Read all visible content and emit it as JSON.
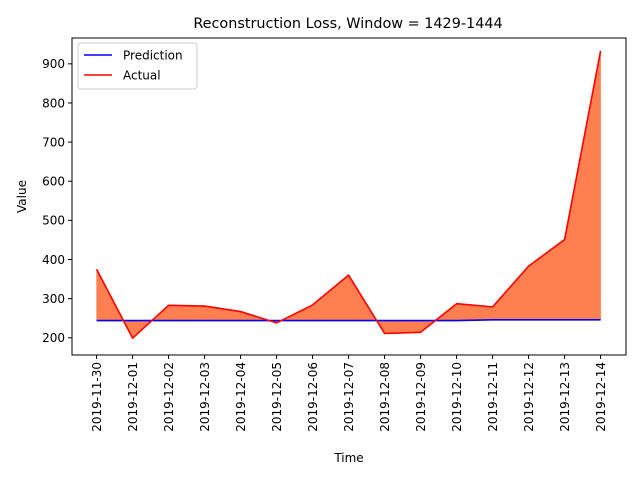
{
  "chart_data": {
    "type": "line",
    "title": "Reconstruction Loss, Window = 1429-1444",
    "xlabel": "Time",
    "ylabel": "Value",
    "categories": [
      "2019-11-30",
      "2019-12-01",
      "2019-12-02",
      "2019-12-03",
      "2019-12-04",
      "2019-12-05",
      "2019-12-06",
      "2019-12-07",
      "2019-12-08",
      "2019-12-09",
      "2019-12-10",
      "2019-12-11",
      "2019-12-12",
      "2019-12-13",
      "2019-12-14"
    ],
    "yticks": [
      200,
      300,
      400,
      500,
      600,
      700,
      800,
      900
    ],
    "ylim": [
      156,
      966
    ],
    "series": [
      {
        "name": "Prediction",
        "color": "#0000ff",
        "values": [
          244,
          244,
          244,
          244,
          244,
          244,
          244,
          244,
          244,
          244,
          244,
          246,
          246,
          246,
          246
        ]
      },
      {
        "name": "Actual",
        "color": "#ff0000",
        "values": [
          375,
          199,
          283,
          281,
          267,
          238,
          284,
          360,
          211,
          214,
          287,
          279,
          383,
          451,
          933
        ]
      }
    ],
    "fill_color": "#ff7f50",
    "legend_position": "upper-left",
    "grid": false
  }
}
